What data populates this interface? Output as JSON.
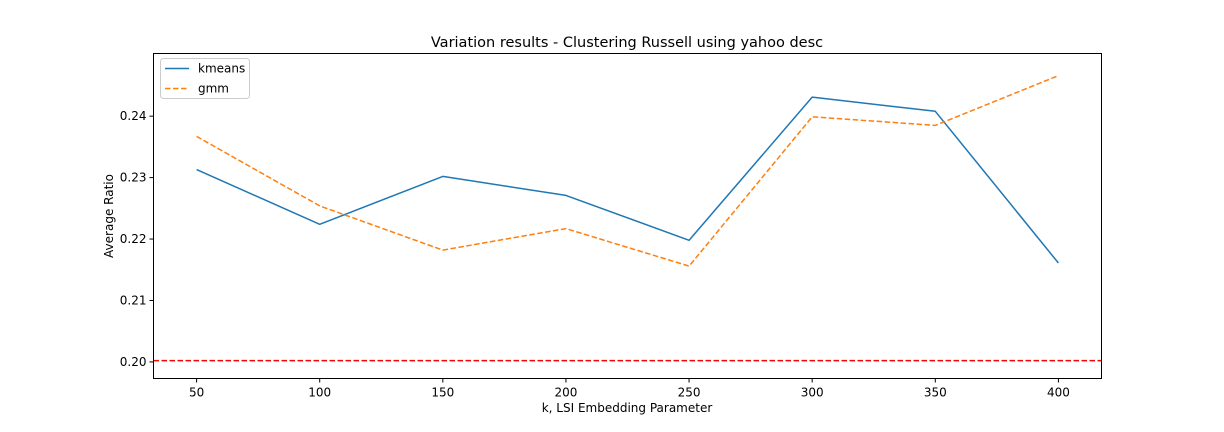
{
  "chart_data": {
    "type": "line",
    "title": "Variation results - Clustering Russell using yahoo desc",
    "xlabel": "k, LSI Embedding Parameter",
    "ylabel": "Average Ratio",
    "x": [
      50,
      100,
      150,
      200,
      250,
      300,
      350,
      400
    ],
    "xticks": [
      "50",
      "100",
      "150",
      "200",
      "250",
      "300",
      "350",
      "400"
    ],
    "yticks": [
      "0.20",
      "0.21",
      "0.22",
      "0.23",
      "0.24"
    ],
    "xlim": [
      32.5,
      417.5
    ],
    "ylim": [
      0.1973,
      0.2502
    ],
    "series": [
      {
        "name": "kmeans",
        "color": "#1f77b4",
        "style": "solid",
        "values": [
          0.2313,
          0.2224,
          0.2302,
          0.2271,
          0.2198,
          0.2431,
          0.2408,
          0.2161
        ]
      },
      {
        "name": "gmm",
        "color": "#ff7f0e",
        "style": "dashed",
        "values": [
          0.2367,
          0.2254,
          0.2182,
          0.2217,
          0.2156,
          0.2399,
          0.2385,
          0.2466
        ]
      }
    ],
    "reference_line": {
      "y": 0.2002,
      "color": "#ff0000",
      "style": "dashed"
    },
    "grid": false,
    "legend": "top-left"
  }
}
